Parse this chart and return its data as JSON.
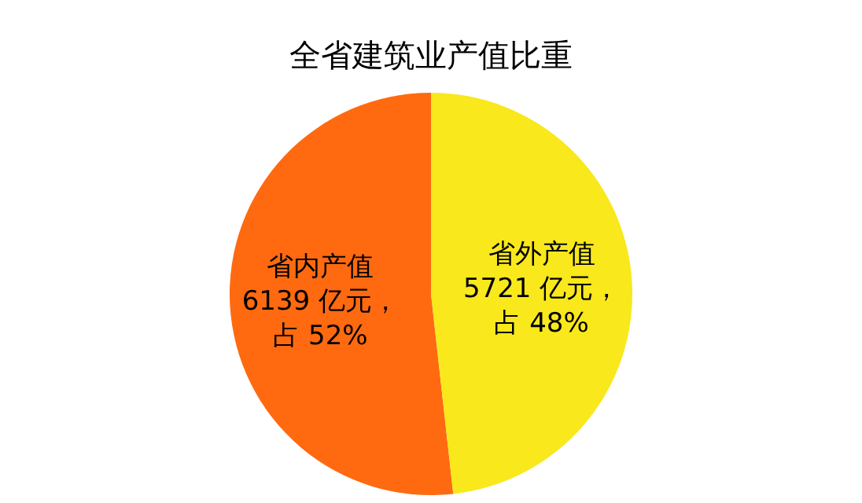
{
  "chart_data": {
    "type": "pie",
    "title": "全省建筑业产值比重",
    "categories": [
      "省内产值",
      "省外产值"
    ],
    "values": [
      6139,
      5721
    ],
    "value_labels": [
      "6139 亿元，占 52%",
      "5721 亿元，占 48%"
    ],
    "colors": [
      "#ff6a10",
      "#f8e81c"
    ]
  }
}
